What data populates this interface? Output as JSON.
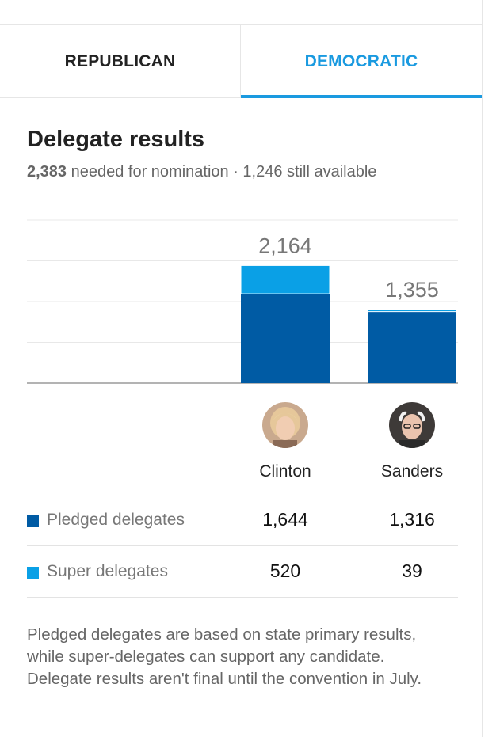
{
  "tabs": [
    {
      "label": "REPUBLICAN",
      "active": false
    },
    {
      "label": "DEMOCRATIC",
      "active": true
    }
  ],
  "header": {
    "title": "Delegate results",
    "needed": "2,383",
    "needed_suffix": " needed for nomination · 1,246 still available"
  },
  "colors": {
    "pledged": "#005ba4",
    "super": "#0aa0e6",
    "accent": "#1a9ae0"
  },
  "chart_data": {
    "type": "bar",
    "stacked": true,
    "categories": [
      "Clinton",
      "Sanders"
    ],
    "series": [
      {
        "name": "Pledged delegates",
        "values": [
          1644,
          1316
        ]
      },
      {
        "name": "Super delegates",
        "values": [
          520,
          39
        ]
      }
    ],
    "totals": [
      "2,164",
      "1,355"
    ],
    "ylim": [
      0,
      3000
    ],
    "grid": true
  },
  "candidates": [
    {
      "name": "Clinton",
      "avatar": "clinton-portrait"
    },
    {
      "name": "Sanders",
      "avatar": "sanders-portrait"
    }
  ],
  "table": {
    "rows": [
      {
        "label": "Pledged delegates",
        "values": [
          "1,644",
          "1,316"
        ]
      },
      {
        "label": "Super delegates",
        "values": [
          "520",
          "39"
        ]
      }
    ]
  },
  "note": "Pledged delegates are based on state primary results, while super-delegates can support any candidate. Delegate results aren't final until the convention in July."
}
